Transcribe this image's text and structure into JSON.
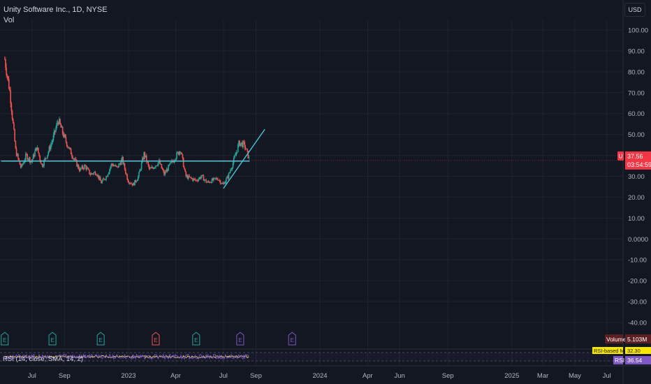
{
  "header": {
    "symbol_title": "Unity Software Inc., 1D, NYSE",
    "vol_label": "Vol",
    "currency_button": "USD"
  },
  "price_badge": {
    "prefix": "U",
    "price": "37.56",
    "countdown": "03:54:59"
  },
  "volume_badge": {
    "label": "Volume",
    "value": "5.103M"
  },
  "rsi_panel": {
    "legend": "RSI (14, close, SMA, 14, 2)",
    "ma_label": "RSI-based MA",
    "ma_value": "32.30",
    "rsi_label": "RSI",
    "rsi_value": "36.54"
  },
  "earnings_markers": [
    "E",
    "E",
    "E",
    "E",
    "E",
    "E",
    "E"
  ],
  "colors": {
    "background": "#131722",
    "grid": "#1f2330",
    "up_candle": "#26a69a",
    "down_candle": "#ef5350",
    "trendline": "#4dc3d6",
    "rsi_line": "#e9d96a",
    "price_badge": "#f23645",
    "volume_badge": "#5d1f22",
    "rsi_badge": "#7e57c2",
    "ma_badge": "#f7e600"
  },
  "chart_data": {
    "type": "candlestick",
    "title": "Unity Software Inc., 1D, NYSE",
    "ylim": [
      -45,
      105
    ],
    "y_ticks": [
      "100.00",
      "90.00",
      "80.00",
      "70.00",
      "60.00",
      "50.00",
      "40.00",
      "30.00",
      "20.00",
      "10.00",
      "0.0000",
      "-10.00",
      "-20.00",
      "-30.00",
      "-40.00"
    ],
    "y_tick_values": [
      100,
      90,
      80,
      70,
      60,
      50,
      40,
      30,
      20,
      10,
      0,
      -10,
      -20,
      -30,
      -40
    ],
    "x_ticks": [
      "Jul",
      "Sep",
      "2023",
      "Apr",
      "Jul",
      "Sep",
      "2024",
      "Apr",
      "Jun",
      "Sep",
      "2025",
      "Mar",
      "May",
      "Jul"
    ],
    "x_tick_dates": [
      "2022-07-01",
      "2022-09-01",
      "2023-01-01",
      "2023-04-01",
      "2023-07-01",
      "2023-09-01",
      "2024-01-01",
      "2024-04-01",
      "2024-06-01",
      "2024-09-01",
      "2025-01-01",
      "2025-03-01",
      "2025-05-01",
      "2025-07-01"
    ],
    "last_price": 37.56,
    "close_series": {
      "dates": [
        "2022-05-10",
        "2022-05-20",
        "2022-05-31",
        "2022-06-10",
        "2022-06-20",
        "2022-06-30",
        "2022-07-10",
        "2022-07-20",
        "2022-07-31",
        "2022-08-10",
        "2022-08-20",
        "2022-08-31",
        "2022-09-10",
        "2022-09-20",
        "2022-09-30",
        "2022-10-10",
        "2022-10-20",
        "2022-10-31",
        "2022-11-10",
        "2022-11-20",
        "2022-11-30",
        "2022-12-10",
        "2022-12-20",
        "2022-12-31",
        "2023-01-10",
        "2023-01-20",
        "2023-01-31",
        "2023-02-10",
        "2023-02-20",
        "2023-02-28",
        "2023-03-10",
        "2023-03-20",
        "2023-03-31",
        "2023-04-10",
        "2023-04-20",
        "2023-04-30",
        "2023-05-10",
        "2023-05-20",
        "2023-05-31",
        "2023-06-10",
        "2023-06-20",
        "2023-06-30",
        "2023-07-10",
        "2023-07-20",
        "2023-07-31",
        "2023-08-10",
        "2023-08-20"
      ],
      "values": [
        86,
        70,
        42,
        34,
        40,
        37,
        44,
        35,
        41,
        48,
        57,
        49,
        43,
        38,
        33,
        35,
        31,
        32,
        27,
        30,
        36,
        34,
        38,
        28,
        26,
        30,
        41,
        33,
        35,
        37,
        31,
        35,
        39,
        43,
        30,
        29,
        28,
        30,
        27,
        28,
        29,
        26,
        30,
        37,
        46,
        45,
        37.56
      ]
    },
    "horizontal_line": {
      "value": 37.3,
      "from": "2022-05-03",
      "to": "2023-08-20"
    },
    "trend_line": {
      "from": {
        "date": "2023-07-01",
        "value": 24.2
      },
      "to": {
        "date": "2023-09-18",
        "value": 52.5
      }
    },
    "earnings_dates": [
      "2022-05-10",
      "2022-08-09",
      "2022-11-09",
      "2023-02-22",
      "2023-05-10",
      "2023-08-02",
      "2023-11-09"
    ],
    "volume": {
      "value": "5.103M"
    },
    "rsi": {
      "value": 36.54,
      "ma": 32.3
    }
  }
}
